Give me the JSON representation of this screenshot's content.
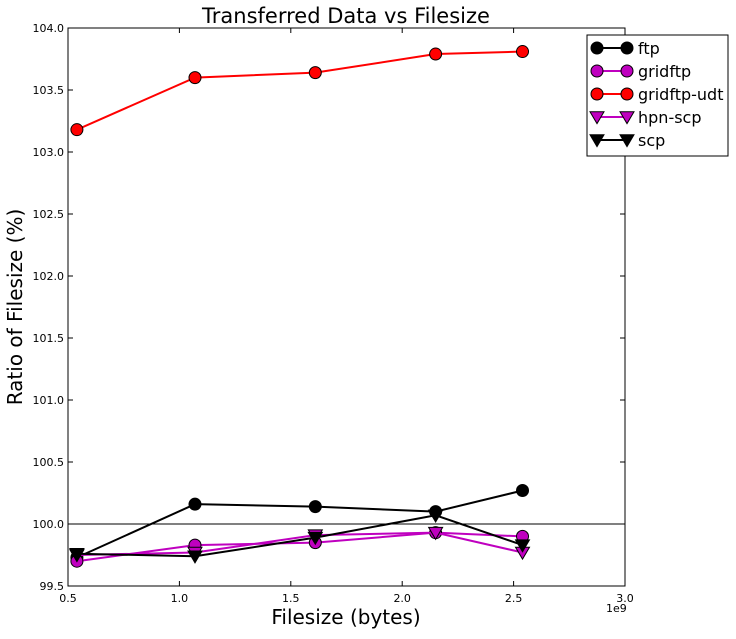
{
  "chart_data": {
    "type": "line",
    "title": "Transferred Data vs Filesize",
    "xlabel": "Filesize (bytes)",
    "ylabel": "Ratio of Filesize (%)",
    "x_multiplier_label": "1e9",
    "xlim": [
      0.5,
      3.0
    ],
    "ylim": [
      99.5,
      104.0
    ],
    "x_ticks": [
      0.5,
      1.0,
      1.5,
      2.0,
      2.5,
      3.0
    ],
    "x_tick_labels": [
      "0.5",
      "1.0",
      "1.5",
      "2.0",
      "2.5",
      "3.0"
    ],
    "y_ticks": [
      99.5,
      100.0,
      100.5,
      101.0,
      101.5,
      102.0,
      102.5,
      103.0,
      103.5,
      104.0
    ],
    "y_tick_labels": [
      "99.5",
      "100.0",
      "100.5",
      "101.0",
      "101.5",
      "102.0",
      "102.5",
      "103.0",
      "103.5",
      "104.0"
    ],
    "reference_line_y": 100.0,
    "grid": false,
    "legend_position": "top-right",
    "x": [
      0.54,
      1.07,
      1.61,
      2.15,
      2.54
    ],
    "series": [
      {
        "name": "ftp",
        "color": "#000000",
        "marker": "circle",
        "values": [
          99.73,
          100.16,
          100.14,
          100.1,
          100.27
        ]
      },
      {
        "name": "gridftp",
        "color": "#bf00bf",
        "marker": "circle",
        "values": [
          99.7,
          99.83,
          99.85,
          99.93,
          99.9
        ]
      },
      {
        "name": "gridftp-udt",
        "color": "#ff0000",
        "marker": "circle",
        "values": [
          103.18,
          103.6,
          103.64,
          103.79,
          103.81
        ]
      },
      {
        "name": "hpn-scp",
        "color": "#bf00bf",
        "marker": "triangle-down",
        "values": [
          99.75,
          99.77,
          99.91,
          99.93,
          99.77
        ]
      },
      {
        "name": "scp",
        "color": "#000000",
        "marker": "triangle-down",
        "values": [
          99.76,
          99.74,
          99.89,
          100.07,
          99.83
        ]
      }
    ]
  }
}
